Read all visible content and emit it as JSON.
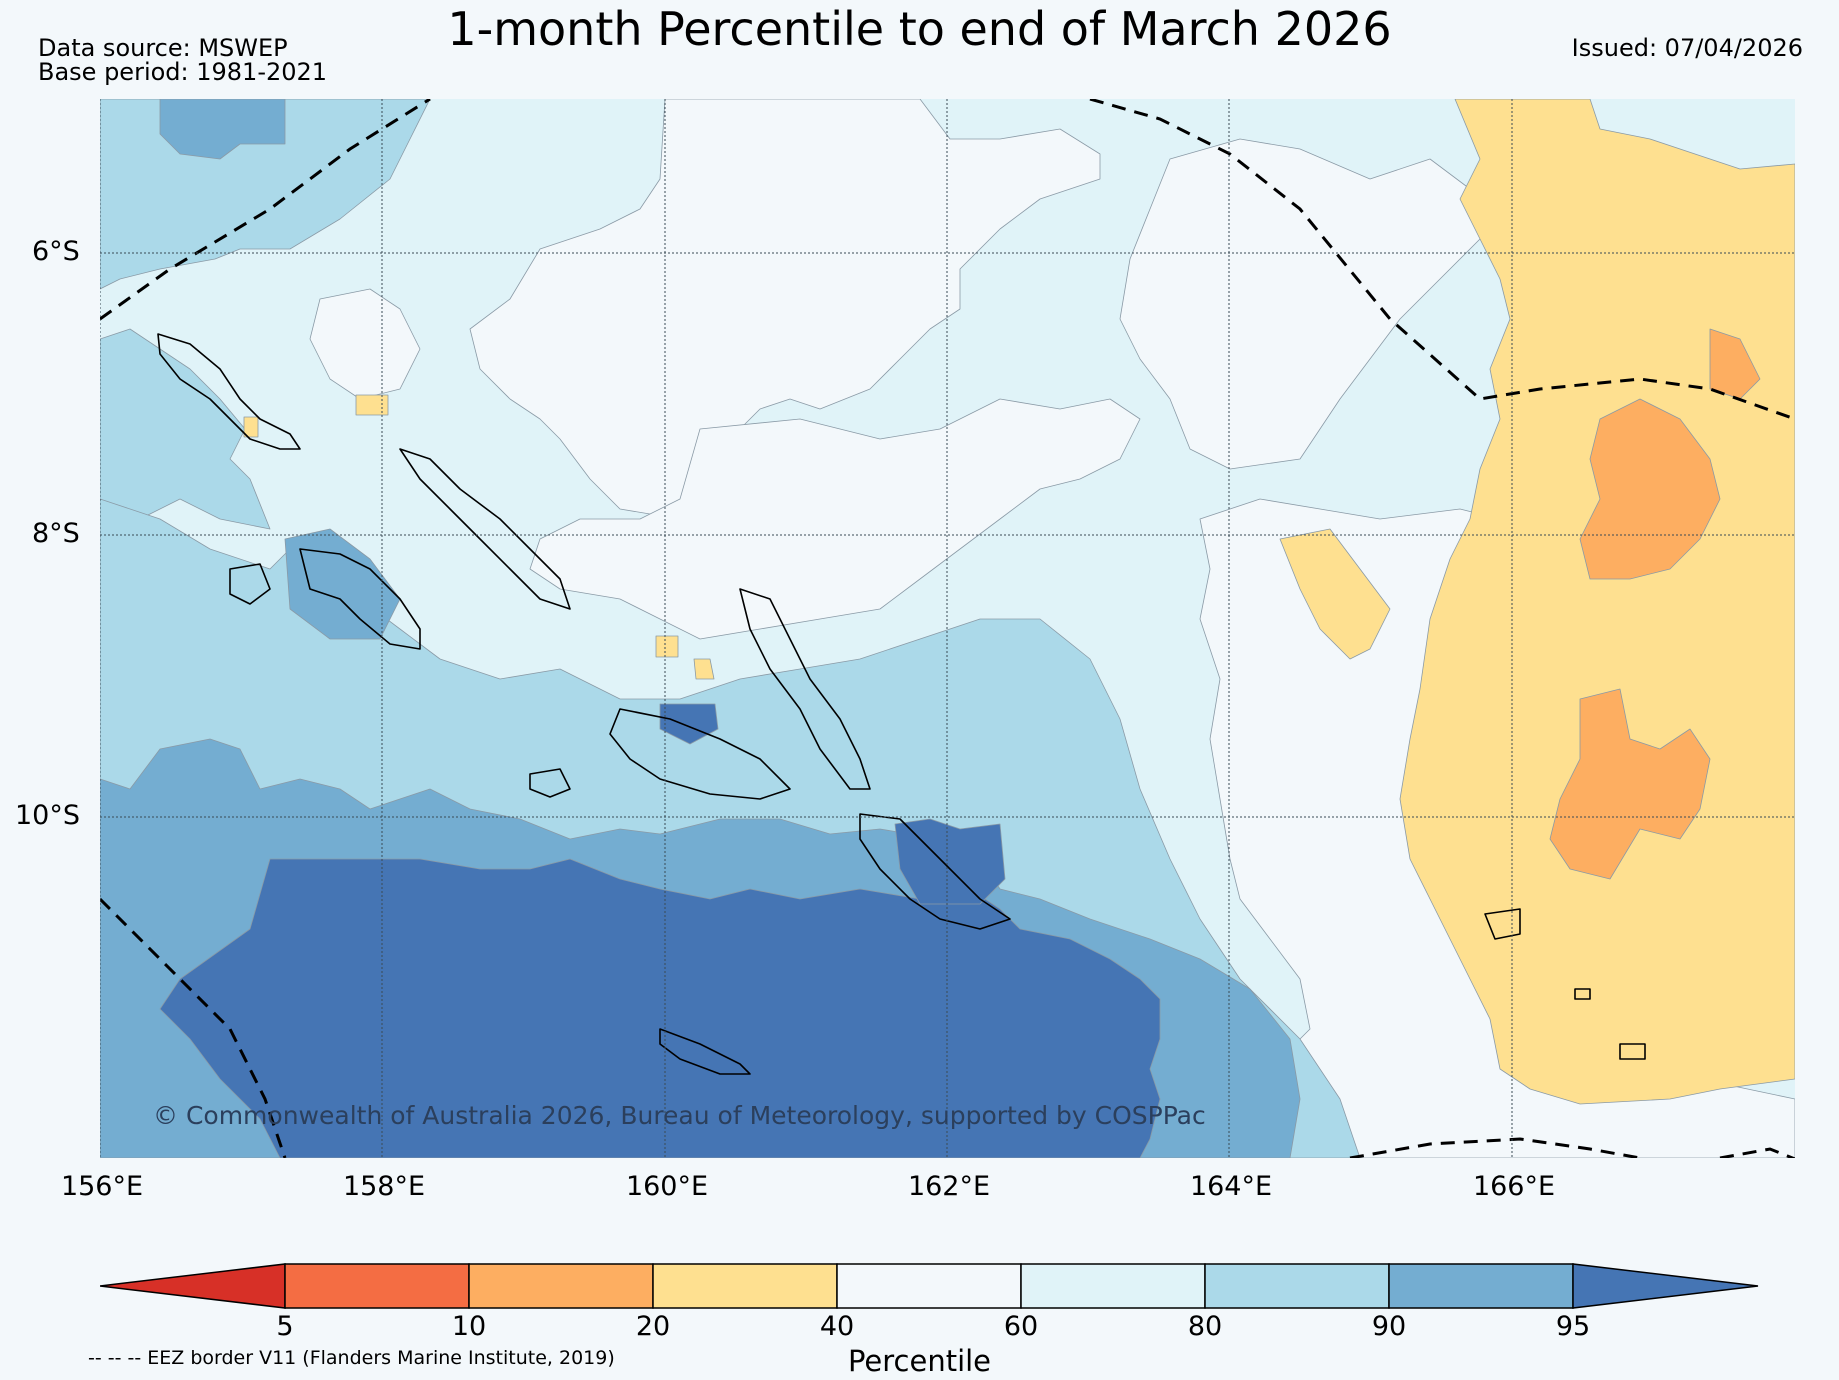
{
  "title": "1-month Percentile to end of March 2026",
  "data_source": "Data source: MSWEP",
  "base_period": "Base period: 1981-2021",
  "issued": "Issued: 07/04/2026",
  "map": {
    "lat_labels": [
      "6°S",
      "8°S",
      "10°S"
    ],
    "lon_labels": [
      "156°E",
      "158°E",
      "160°E",
      "162°E",
      "164°E",
      "166°E"
    ],
    "copyright": "© Commonwealth of Australia 2026, Bureau of Meteorology, supported by COSPPac",
    "eez_note": "-- -- -- EEZ border V11 (Flanders Marine Institute, 2019)"
  },
  "colors": {
    "p_lt5": "#d73027",
    "p_5_10": "#f46d43",
    "p_10_20": "#fdae61",
    "p_20_40": "#fee090",
    "p_40_60": "#f3f8fb",
    "p_60_80": "#e0f3f8",
    "p_80_90": "#abd9e9",
    "p_90_95": "#74add1",
    "p_gt95": "#4575b4"
  },
  "colorbar": {
    "label": "Percentile",
    "ticks": [
      "5",
      "10",
      "20",
      "40",
      "60",
      "80",
      "90",
      "95"
    ]
  }
}
